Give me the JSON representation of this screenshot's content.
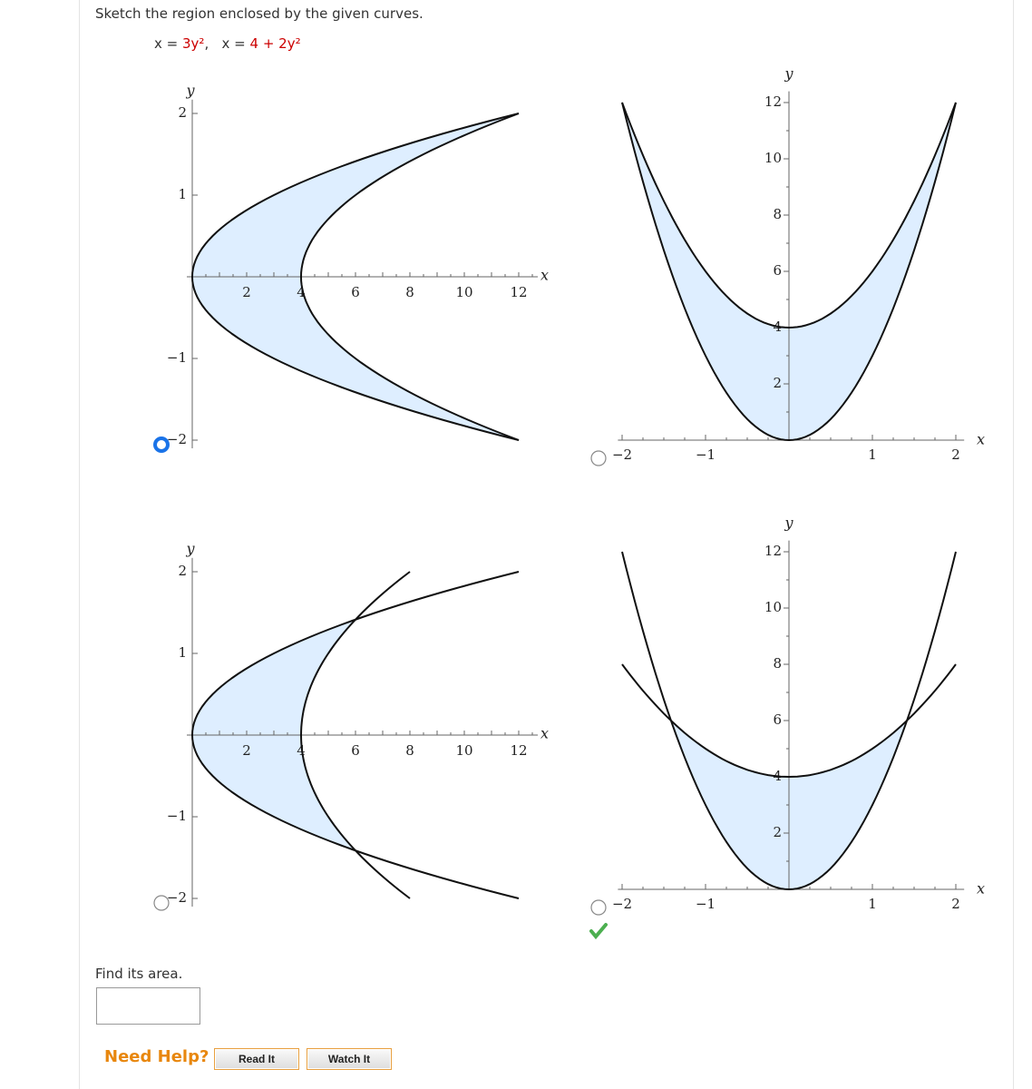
{
  "prompt": "Sketch the region enclosed by the given curves.",
  "equations": [
    {
      "lhs": "x =",
      "rhs": "3y²"
    },
    {
      "lhs": "x =",
      "rhs": "4 + 2y²"
    }
  ],
  "separator": ",",
  "graphs": [
    {
      "axis_x": "x",
      "axis_y": "y",
      "x_tick_labels": [
        "2",
        "4",
        "6",
        "8",
        "10",
        "12"
      ],
      "y_tick_labels": [
        "2",
        "1",
        "−1",
        "−2"
      ],
      "selected": true,
      "correct": false
    },
    {
      "axis_x": "x",
      "axis_y": "y",
      "x_tick_labels": [
        "−2",
        "−1",
        "1",
        "2"
      ],
      "y_tick_labels": [
        "12",
        "10",
        "8",
        "6",
        "4",
        "2"
      ],
      "selected": false,
      "correct": false
    },
    {
      "axis_x": "x",
      "axis_y": "y",
      "x_tick_labels": [
        "2",
        "4",
        "6",
        "8",
        "10",
        "12"
      ],
      "y_tick_labels": [
        "2",
        "1",
        "−1",
        "−2"
      ],
      "selected": false,
      "correct": false
    },
    {
      "axis_x": "x",
      "axis_y": "y",
      "x_tick_labels": [
        "−2",
        "−1",
        "1",
        "2"
      ],
      "y_tick_labels": [
        "12",
        "10",
        "8",
        "6",
        "4",
        "2"
      ],
      "selected": false,
      "correct": true
    }
  ],
  "area_prompt": "Find its area.",
  "help": {
    "label": "Need Help?",
    "buttons": [
      "Read It",
      "Watch It"
    ]
  }
}
